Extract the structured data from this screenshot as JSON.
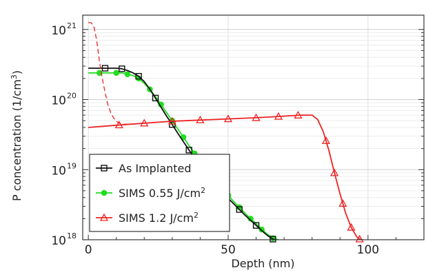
{
  "chart_data": {
    "type": "line",
    "xlabel": "Depth (nm)",
    "ylabel_main": "P concentration (1/cm",
    "ylabel_sup": "3",
    "ylabel_end": ")",
    "xlim": [
      -2,
      120
    ],
    "ylim": [
      1e+18,
      1.6e+21
    ],
    "yscale": "log",
    "grid": true,
    "legend_position": "bottom-left",
    "x_ticks": [
      {
        "value": 0,
        "label": "0"
      },
      {
        "value": 50,
        "label": "50"
      },
      {
        "value": 100,
        "label": "100"
      }
    ],
    "y_ticks": [
      {
        "value": 1e+18,
        "base": "10",
        "exp": "18"
      },
      {
        "value": 1e+19,
        "base": "10",
        "exp": "19"
      },
      {
        "value": 1e+20,
        "base": "10",
        "exp": "20"
      },
      {
        "value": 1e+21,
        "base": "10",
        "exp": "21"
      }
    ],
    "series": [
      {
        "name": "SIMS 0.55 J/cm",
        "name_sup": "2",
        "color": "#22dd22",
        "marker": "circle",
        "x": [
          0,
          2,
          4,
          6,
          8,
          10,
          12,
          14,
          16,
          18,
          20,
          22,
          24,
          26,
          28,
          30,
          32,
          34,
          36,
          38,
          40,
          42,
          44,
          46,
          48,
          50,
          52,
          54,
          56,
          58,
          60,
          62,
          64,
          66,
          68
        ],
        "y": [
          2.4e+20,
          2.4e+20,
          2.4e+20,
          2.4e+20,
          2.4e+20,
          2.4e+20,
          2.4e+20,
          2.3e+20,
          2.2e+20,
          2e+20,
          1.7e+20,
          1.4e+20,
          1.1e+20,
          8.5e+19,
          6.5e+19,
          5e+19,
          3.8e+19,
          2.9e+19,
          2.2e+19,
          1.7e+19,
          1.3e+19,
          1e+19,
          8e+18,
          6.5e+18,
          5.3e+18,
          4.3e+18,
          3.5e+18,
          2.9e+18,
          2.4e+18,
          2e+18,
          1.7e+18,
          1.4e+18,
          1.2e+18,
          1.05e+18,
          1e+18
        ],
        "marker_x": [
          4,
          10,
          14,
          18,
          22,
          26,
          30,
          34,
          38,
          42,
          46,
          50,
          54,
          58,
          62,
          66
        ]
      },
      {
        "name": "As Implanted",
        "color": "#111111",
        "marker": "square",
        "x": [
          0,
          2,
          4,
          6,
          8,
          10,
          12,
          14,
          16,
          18,
          20,
          22,
          24,
          26,
          28,
          30,
          32,
          34,
          36,
          38,
          40,
          42,
          44,
          46,
          48,
          50,
          52,
          54,
          56,
          58,
          60,
          62,
          64,
          66,
          67
        ],
        "y": [
          2.8e+20,
          2.8e+20,
          2.8e+20,
          2.8e+20,
          2.8e+20,
          2.8e+20,
          2.75e+20,
          2.6e+20,
          2.4e+20,
          2.15e+20,
          1.8e+20,
          1.4e+20,
          1.05e+20,
          7.8e+19,
          5.8e+19,
          4.4e+19,
          3.3e+19,
          2.5e+19,
          1.9e+19,
          1.45e+19,
          1.1e+19,
          8.8e+18,
          7e+18,
          5.7e+18,
          4.7e+18,
          3.9e+18,
          3.25e+18,
          2.7e+18,
          2.25e+18,
          1.9e+18,
          1.6e+18,
          1.35e+18,
          1.15e+18,
          1.02e+18,
          1e+18
        ],
        "marker_x": [
          6,
          12,
          18,
          24,
          30,
          36,
          42,
          48,
          54,
          60,
          66
        ]
      },
      {
        "name": "SIMS 1.2 J/cm",
        "name_sup": "2",
        "color": "#ee2222",
        "marker": "triangle",
        "x": [
          0,
          10,
          20,
          30,
          40,
          50,
          60,
          70,
          76,
          80,
          82,
          84,
          86,
          88,
          90,
          92,
          94,
          96,
          97,
          98
        ],
        "y": [
          4e+19,
          4.3e+19,
          4.6e+19,
          4.9e+19,
          5.1e+19,
          5.3e+19,
          5.5e+19,
          5.8e+19,
          6e+19,
          6e+19,
          5.2e+19,
          3.5e+19,
          1.9e+19,
          9e+18,
          4.5e+18,
          2.4e+18,
          1.5e+18,
          1.1e+18,
          1.02e+18,
          1e+18
        ],
        "marker_x": [
          11,
          20,
          30,
          40,
          50,
          60,
          68,
          75,
          85,
          88,
          91,
          94,
          97
        ]
      },
      {
        "name": "",
        "color": "#ee2222",
        "style": "dashed",
        "x": [
          0,
          1,
          2,
          3,
          4,
          5,
          6,
          7,
          8,
          9,
          10,
          11,
          12,
          13,
          14,
          15
        ],
        "y": [
          1.25e+21,
          1.25e+21,
          1.1e+21,
          7e+20,
          3.5e+20,
          2e+20,
          1.25e+20,
          8.5e+19,
          6.5e+19,
          5.5e+19,
          4.9e+19,
          4.6e+19,
          4.5e+19,
          4.45e+19,
          4.45e+19,
          4.45e+19
        ]
      }
    ],
    "legend": [
      {
        "label": "As Implanted",
        "sup": "",
        "series_index": 1
      },
      {
        "label": "SIMS 0.55 J/cm",
        "sup": "2",
        "series_index": 0
      },
      {
        "label": "SIMS 1.2 J/cm",
        "sup": "2",
        "series_index": 2
      }
    ]
  }
}
